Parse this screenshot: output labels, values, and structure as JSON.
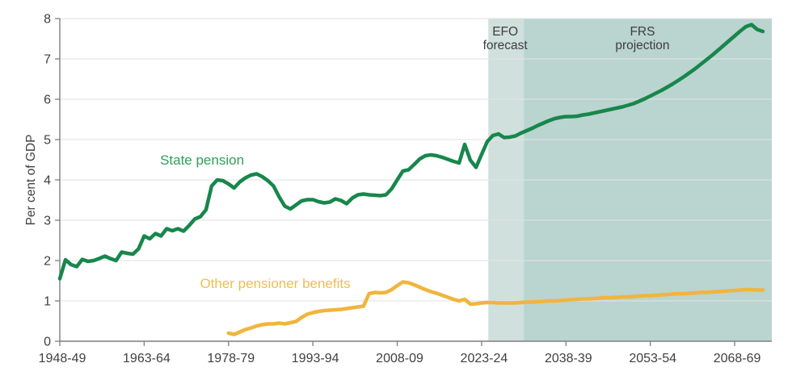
{
  "chart_data": {
    "type": "line",
    "title": "",
    "xlabel": "",
    "ylabel": "Per cent of GDP",
    "ylim": [
      0,
      8
    ],
    "y_ticks": [
      0,
      1,
      2,
      3,
      4,
      5,
      6,
      7,
      8
    ],
    "x_axis": {
      "year_start": 1948,
      "year_end": 2074.6
    },
    "x_tick_years": [
      1948,
      1963,
      1978,
      1993,
      2008,
      2023,
      2038,
      2053,
      2068
    ],
    "x_tick_labels": [
      "1948-49",
      "1963-64",
      "1978-79",
      "1993-94",
      "2008-09",
      "2023-24",
      "2038-39",
      "2053-54",
      "2068-69"
    ],
    "grid": "horizontal",
    "colors": {
      "background": "#ffffff",
      "gridline": "#e4e4e4",
      "axis": "#7f7f7f",
      "tick_text": "#404040",
      "band_label_text": "#3d3d3d",
      "state_pension_line": "#17874b",
      "state_pension_label": "#2f9e5a",
      "other_benefits_line": "#f0b53d",
      "other_benefits_label": "#edbd53",
      "efo_band": "#d0e0dd",
      "frs_band": "#bad4d0"
    },
    "bands": [
      {
        "name": "efo-forecast-band",
        "label_line1": "EFO",
        "label_line2": "forecast",
        "start_year": 2024.2,
        "end_year": 2030.5,
        "label_center_year": 2027.2,
        "label_baseline_values": [
          7.58,
          7.24
        ],
        "color_key": "efo_band"
      },
      {
        "name": "frs-projection-band",
        "label_line1": "FRS",
        "label_line2": "projection",
        "start_year": 2030.5,
        "end_year": 2074.6,
        "label_center_year": 2051.6,
        "label_baseline_values": [
          7.58,
          7.24
        ],
        "color_key": "frs_band"
      }
    ],
    "series": [
      {
        "name": "State pension",
        "data_name": "state-pension-line",
        "color_key": "state_pension_line",
        "start_year": 1948,
        "values": [
          1.55,
          2.02,
          1.9,
          1.85,
          2.03,
          1.98,
          2.0,
          2.05,
          2.11,
          2.05,
          2.0,
          2.21,
          2.18,
          2.16,
          2.29,
          2.61,
          2.54,
          2.67,
          2.61,
          2.79,
          2.74,
          2.79,
          2.73,
          2.87,
          3.03,
          3.09,
          3.26,
          3.85,
          4.0,
          3.98,
          3.9,
          3.8,
          3.95,
          4.05,
          4.12,
          4.15,
          4.08,
          3.98,
          3.85,
          3.58,
          3.35,
          3.28,
          3.38,
          3.48,
          3.51,
          3.51,
          3.46,
          3.43,
          3.45,
          3.53,
          3.49,
          3.41,
          3.55,
          3.63,
          3.65,
          3.63,
          3.62,
          3.61,
          3.63,
          3.78,
          4.0,
          4.22,
          4.25,
          4.38,
          4.52,
          4.6,
          4.62,
          4.6,
          4.56,
          4.51,
          4.46,
          4.42,
          4.88,
          4.49,
          4.31,
          4.63,
          4.95,
          5.1,
          5.14,
          5.05,
          5.06,
          5.09,
          5.16,
          5.22,
          5.28,
          5.35,
          5.41,
          5.47,
          5.52,
          5.55,
          5.57,
          5.57,
          5.58,
          5.61,
          5.63,
          5.66,
          5.69,
          5.72,
          5.75,
          5.78,
          5.81,
          5.85,
          5.89,
          5.95,
          6.01,
          6.08,
          6.15,
          6.22,
          6.3,
          6.38,
          6.47,
          6.56,
          6.66,
          6.76,
          6.87,
          6.98,
          7.09,
          7.21,
          7.33,
          7.45,
          7.57,
          7.69,
          7.8,
          7.85,
          7.73,
          7.68
        ]
      },
      {
        "name": "Other pensioner benefits",
        "data_name": "other-pensioner-benefits-line",
        "color_key": "other_benefits_line",
        "start_year": 1978,
        "values": [
          0.2,
          0.17,
          0.23,
          0.29,
          0.33,
          0.38,
          0.41,
          0.43,
          0.43,
          0.45,
          0.43,
          0.46,
          0.49,
          0.59,
          0.67,
          0.71,
          0.74,
          0.76,
          0.77,
          0.78,
          0.79,
          0.81,
          0.83,
          0.85,
          0.87,
          1.18,
          1.21,
          1.2,
          1.21,
          1.28,
          1.38,
          1.47,
          1.45,
          1.4,
          1.34,
          1.28,
          1.23,
          1.19,
          1.14,
          1.09,
          1.04,
          1.0,
          1.04,
          0.92,
          0.93,
          0.95,
          0.96,
          0.96,
          0.95,
          0.95,
          0.95,
          0.95,
          0.96,
          0.97,
          0.97,
          0.98,
          0.99,
          1.0,
          1.0,
          1.01,
          1.02,
          1.03,
          1.04,
          1.05,
          1.05,
          1.06,
          1.07,
          1.08,
          1.08,
          1.09,
          1.1,
          1.1,
          1.11,
          1.12,
          1.13,
          1.13,
          1.14,
          1.15,
          1.16,
          1.17,
          1.18,
          1.18,
          1.19,
          1.2,
          1.21,
          1.21,
          1.22,
          1.23,
          1.24,
          1.25,
          1.26,
          1.27,
          1.28,
          1.28,
          1.27,
          1.27
        ]
      }
    ],
    "series_labels": [
      {
        "text": "State pension",
        "data_name": "state-pension-label",
        "center_year": 1973.3,
        "baseline_value": 4.38,
        "color_key": "state_pension_label"
      },
      {
        "text": "Other pensioner benefits",
        "data_name": "other-pensioner-benefits-label",
        "center_year": 1986.3,
        "baseline_value": 1.32,
        "color_key": "other_benefits_label"
      }
    ]
  }
}
